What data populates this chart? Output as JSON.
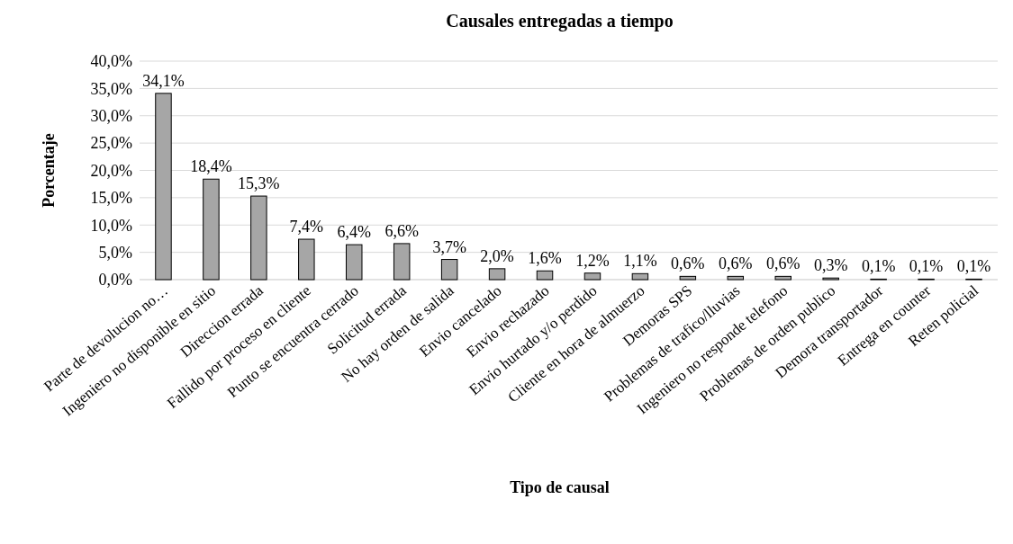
{
  "chart_data": {
    "type": "bar",
    "title": "Causales entregadas a tiempo",
    "xlabel": "Tipo de causal",
    "ylabel": "Porcentaje",
    "categories": [
      "Parte de devolucion no…",
      "Ingeniero no disponible en sitio",
      "Direccion errada",
      "Fallido por proceso en cliente",
      "Punto se encuentra cerrado",
      "Solicitud errada",
      "No hay orden de salida",
      "Envio cancelado",
      "Envio rechazado",
      "Envio hurtado y/o perdido",
      "Cliente en hora de almuerzo",
      "Demoras SPS",
      "Problemas de trafico/lluvias",
      "Ingeniero no responde telefono",
      "Problemas de orden publico",
      "Demora transportador",
      "Entrega en counter",
      "Reten policial"
    ],
    "values": [
      34.1,
      18.4,
      15.3,
      7.4,
      6.4,
      6.6,
      3.7,
      2.0,
      1.6,
      1.2,
      1.1,
      0.6,
      0.6,
      0.6,
      0.3,
      0.1,
      0.1,
      0.1
    ],
    "value_labels": [
      "34,1%",
      "18,4%",
      "15,3%",
      "7,4%",
      "6,4%",
      "6,6%",
      "3,7%",
      "2,0%",
      "1,6%",
      "1,2%",
      "1,1%",
      "0,6%",
      "0,6%",
      "0,6%",
      "0,3%",
      "0,1%",
      "0,1%",
      "0,1%"
    ],
    "color": "#a6a6a6",
    "ylim": [
      0,
      40
    ],
    "yticks": [
      {
        "value": 0,
        "label": "0,0%"
      },
      {
        "value": 5,
        "label": "5,0%"
      },
      {
        "value": 10,
        "label": "10,0%"
      },
      {
        "value": 15,
        "label": "15,0%"
      },
      {
        "value": 20,
        "label": "20,0%"
      },
      {
        "value": 25,
        "label": "25,0%"
      },
      {
        "value": 30,
        "label": "30,0%"
      },
      {
        "value": 35,
        "label": "35,0%"
      },
      {
        "value": 40,
        "label": "40,0%"
      }
    ],
    "grid": "y"
  }
}
